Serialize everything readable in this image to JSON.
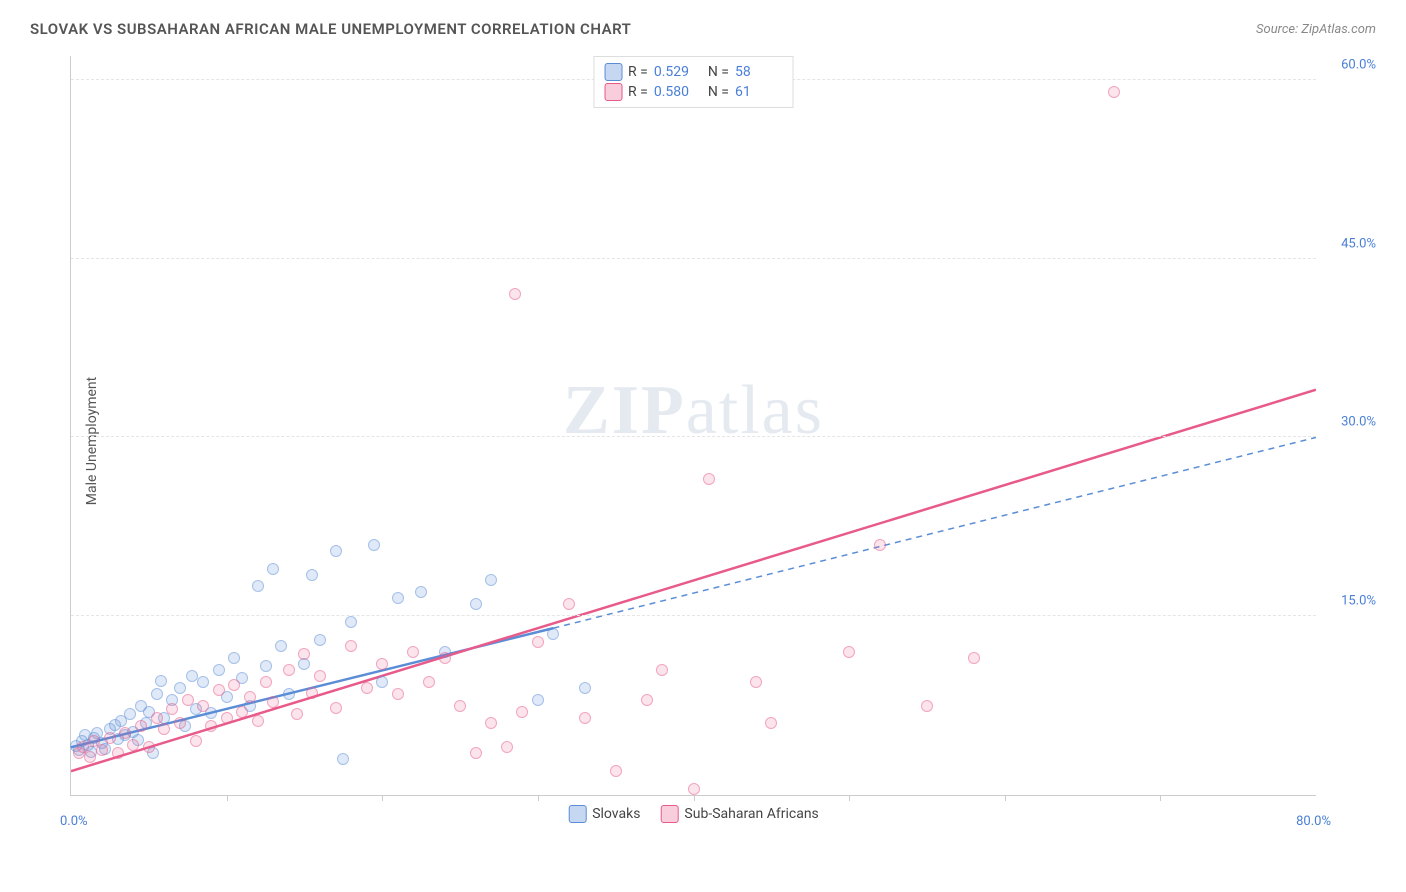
{
  "title": "SLOVAK VS SUBSAHARAN AFRICAN MALE UNEMPLOYMENT CORRELATION CHART",
  "source_label": "Source: ZipAtlas.com",
  "watermark": {
    "bold": "ZIP",
    "rest": "atlas"
  },
  "y_axis_title": "Male Unemployment",
  "chart": {
    "type": "scatter",
    "background_color": "#ffffff",
    "grid_color": "#e5e5e5",
    "axis_color": "#cccccc",
    "xlim": [
      0,
      80
    ],
    "ylim": [
      0,
      62
    ],
    "x_min_label": "0.0%",
    "x_max_label": "80.0%",
    "x_tick_positions": [
      10,
      20,
      30,
      40,
      50,
      60,
      70
    ],
    "y_ticks": [
      {
        "value": 15,
        "label": "15.0%"
      },
      {
        "value": 30,
        "label": "30.0%"
      },
      {
        "value": 45,
        "label": "45.0%"
      },
      {
        "value": 60,
        "label": "60.0%"
      }
    ],
    "marker_size": 12,
    "series": [
      {
        "name": "Slovaks",
        "color": "#5b8dd6",
        "fill": "rgba(91,141,214,0.35)",
        "stroke": "#5b8dd6",
        "R": "0.529",
        "N": "58",
        "trend": {
          "x1": 0,
          "y1": 4.0,
          "x2": 31,
          "y2": 14.0,
          "x2b": 80,
          "y2b": 30.0,
          "style": "solid-then-dashed",
          "width": 2.5
        },
        "points": [
          [
            0.3,
            4.1
          ],
          [
            0.5,
            3.8
          ],
          [
            0.7,
            4.5
          ],
          [
            0.9,
            5.0
          ],
          [
            1.1,
            4.2
          ],
          [
            1.3,
            3.6
          ],
          [
            1.5,
            4.8
          ],
          [
            1.7,
            5.2
          ],
          [
            2.0,
            4.4
          ],
          [
            2.2,
            3.9
          ],
          [
            2.5,
            5.5
          ],
          [
            2.8,
            5.9
          ],
          [
            3.0,
            4.7
          ],
          [
            3.2,
            6.2
          ],
          [
            3.5,
            5.0
          ],
          [
            3.8,
            6.8
          ],
          [
            4.0,
            5.3
          ],
          [
            4.3,
            4.6
          ],
          [
            4.5,
            7.5
          ],
          [
            4.8,
            6.0
          ],
          [
            5.0,
            7.0
          ],
          [
            5.3,
            3.5
          ],
          [
            5.5,
            8.5
          ],
          [
            5.8,
            9.6
          ],
          [
            6.0,
            6.5
          ],
          [
            6.5,
            8.0
          ],
          [
            7.0,
            9.0
          ],
          [
            7.3,
            5.8
          ],
          [
            7.8,
            10.0
          ],
          [
            8.0,
            7.2
          ],
          [
            8.5,
            9.5
          ],
          [
            9.0,
            6.9
          ],
          [
            9.5,
            10.5
          ],
          [
            10.0,
            8.2
          ],
          [
            10.5,
            11.5
          ],
          [
            11.0,
            9.8
          ],
          [
            11.5,
            7.5
          ],
          [
            12.0,
            17.5
          ],
          [
            12.5,
            10.8
          ],
          [
            13.0,
            19.0
          ],
          [
            13.5,
            12.5
          ],
          [
            14.0,
            8.5
          ],
          [
            15.0,
            11.0
          ],
          [
            15.5,
            18.5
          ],
          [
            16.0,
            13.0
          ],
          [
            17.0,
            20.5
          ],
          [
            17.5,
            3.0
          ],
          [
            18.0,
            14.5
          ],
          [
            19.5,
            21.0
          ],
          [
            20.0,
            9.5
          ],
          [
            21.0,
            16.5
          ],
          [
            22.5,
            17.0
          ],
          [
            24.0,
            12.0
          ],
          [
            26.0,
            16.0
          ],
          [
            27.0,
            18.0
          ],
          [
            30.0,
            8.0
          ],
          [
            31.0,
            13.5
          ],
          [
            33.0,
            9.0
          ]
        ]
      },
      {
        "name": "Sub-Saharan Africans",
        "color": "#e85a8a",
        "fill": "rgba(232,90,138,0.30)",
        "stroke": "#e85a8a",
        "R": "0.580",
        "N": "61",
        "trend": {
          "x1": 0,
          "y1": 2.0,
          "x2": 80,
          "y2": 34.0,
          "style": "solid",
          "width": 2.5
        },
        "points": [
          [
            0.5,
            3.5
          ],
          [
            0.8,
            4.0
          ],
          [
            1.2,
            3.2
          ],
          [
            1.5,
            4.5
          ],
          [
            2.0,
            3.8
          ],
          [
            2.5,
            4.8
          ],
          [
            3.0,
            3.5
          ],
          [
            3.5,
            5.2
          ],
          [
            4.0,
            4.2
          ],
          [
            4.5,
            5.8
          ],
          [
            5.0,
            4.0
          ],
          [
            5.5,
            6.5
          ],
          [
            6.0,
            5.5
          ],
          [
            6.5,
            7.2
          ],
          [
            7.0,
            6.0
          ],
          [
            7.5,
            8.0
          ],
          [
            8.0,
            4.5
          ],
          [
            8.5,
            7.5
          ],
          [
            9.0,
            5.8
          ],
          [
            9.5,
            8.8
          ],
          [
            10.0,
            6.5
          ],
          [
            10.5,
            9.2
          ],
          [
            11.0,
            7.0
          ],
          [
            11.5,
            8.2
          ],
          [
            12.0,
            6.2
          ],
          [
            12.5,
            9.5
          ],
          [
            13.0,
            7.8
          ],
          [
            14.0,
            10.5
          ],
          [
            14.5,
            6.8
          ],
          [
            15.0,
            11.8
          ],
          [
            15.5,
            8.6
          ],
          [
            16.0,
            10.0
          ],
          [
            17.0,
            7.3
          ],
          [
            18.0,
            12.5
          ],
          [
            19.0,
            9.0
          ],
          [
            20.0,
            11.0
          ],
          [
            21.0,
            8.5
          ],
          [
            22.0,
            12.0
          ],
          [
            23.0,
            9.5
          ],
          [
            24.0,
            11.5
          ],
          [
            25.0,
            7.5
          ],
          [
            26.0,
            3.5
          ],
          [
            27.0,
            6.0
          ],
          [
            28.0,
            4.0
          ],
          [
            28.5,
            42.0
          ],
          [
            29.0,
            7.0
          ],
          [
            30.0,
            12.8
          ],
          [
            32.0,
            16.0
          ],
          [
            33.0,
            6.5
          ],
          [
            35.0,
            2.0
          ],
          [
            37.0,
            8.0
          ],
          [
            38.0,
            10.5
          ],
          [
            40.0,
            0.5
          ],
          [
            41.0,
            26.5
          ],
          [
            44.0,
            9.5
          ],
          [
            45.0,
            6.0
          ],
          [
            50.0,
            12.0
          ],
          [
            52.0,
            21.0
          ],
          [
            55.0,
            7.5
          ],
          [
            58.0,
            11.5
          ],
          [
            67.0,
            59.0
          ]
        ]
      }
    ]
  },
  "legend_top": {
    "r_label": "R =",
    "n_label": "N ="
  },
  "legend_bottom": [
    {
      "label": "Slovaks"
    },
    {
      "label": "Sub-Saharan Africans"
    }
  ]
}
